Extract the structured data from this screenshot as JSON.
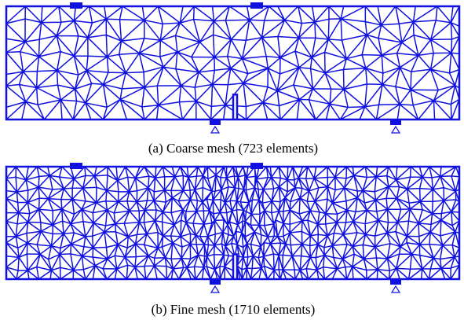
{
  "figures": [
    {
      "caption": "(a) Coarse mesh (723 elements)"
    },
    {
      "caption": "(b) Fine mesh (1710 elements)"
    }
  ]
}
